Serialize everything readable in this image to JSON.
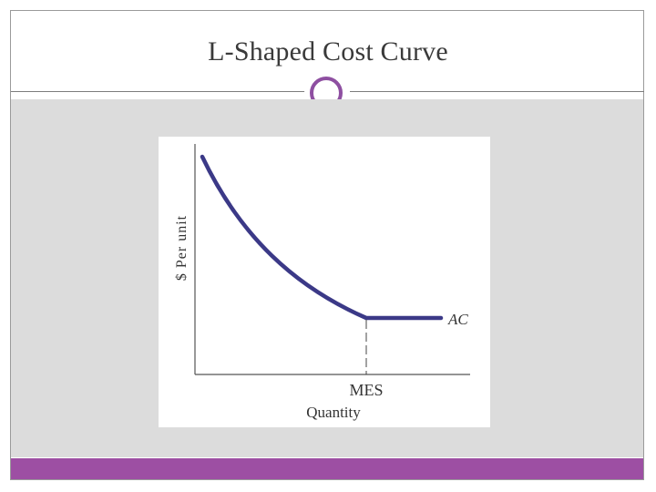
{
  "slide": {
    "title": "L-Shaped Cost Curve",
    "accent_color": "#9d4fa3",
    "background_color": "#dcdcdc"
  },
  "figure": {
    "y_axis_label": "$ Per unit",
    "x_axis_label": "Quantity",
    "mes_label": "MES",
    "curve_label": "AC",
    "curve_color": "#3b3987"
  }
}
